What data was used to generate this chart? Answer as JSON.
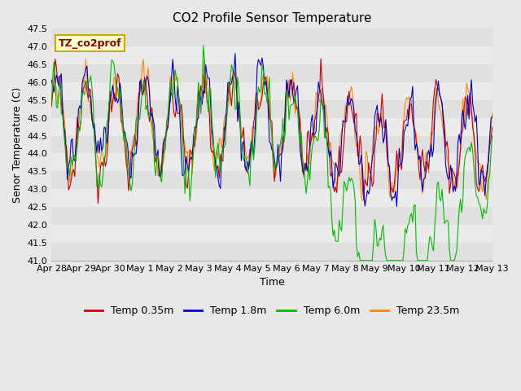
{
  "title": "CO2 Profile Sensor Temperature",
  "xlabel": "Time",
  "ylabel": "Senor Temperature (C)",
  "ylim": [
    41.0,
    47.5
  ],
  "yticks": [
    41.0,
    41.5,
    42.0,
    42.5,
    43.0,
    43.5,
    44.0,
    44.5,
    45.0,
    45.5,
    46.0,
    46.5,
    47.0,
    47.5
  ],
  "colors": {
    "Temp 0.35m": "#cc0000",
    "Temp 1.8m": "#0000cc",
    "Temp 6.0m": "#00bb00",
    "Temp 23.5m": "#ff8800"
  },
  "legend_label": "TZ_co2prof",
  "band_colors": [
    "#e0e0e0",
    "#ebebeb"
  ],
  "title_fontsize": 11,
  "axis_fontsize": 9,
  "tick_fontsize": 8,
  "legend_fontsize": 9
}
